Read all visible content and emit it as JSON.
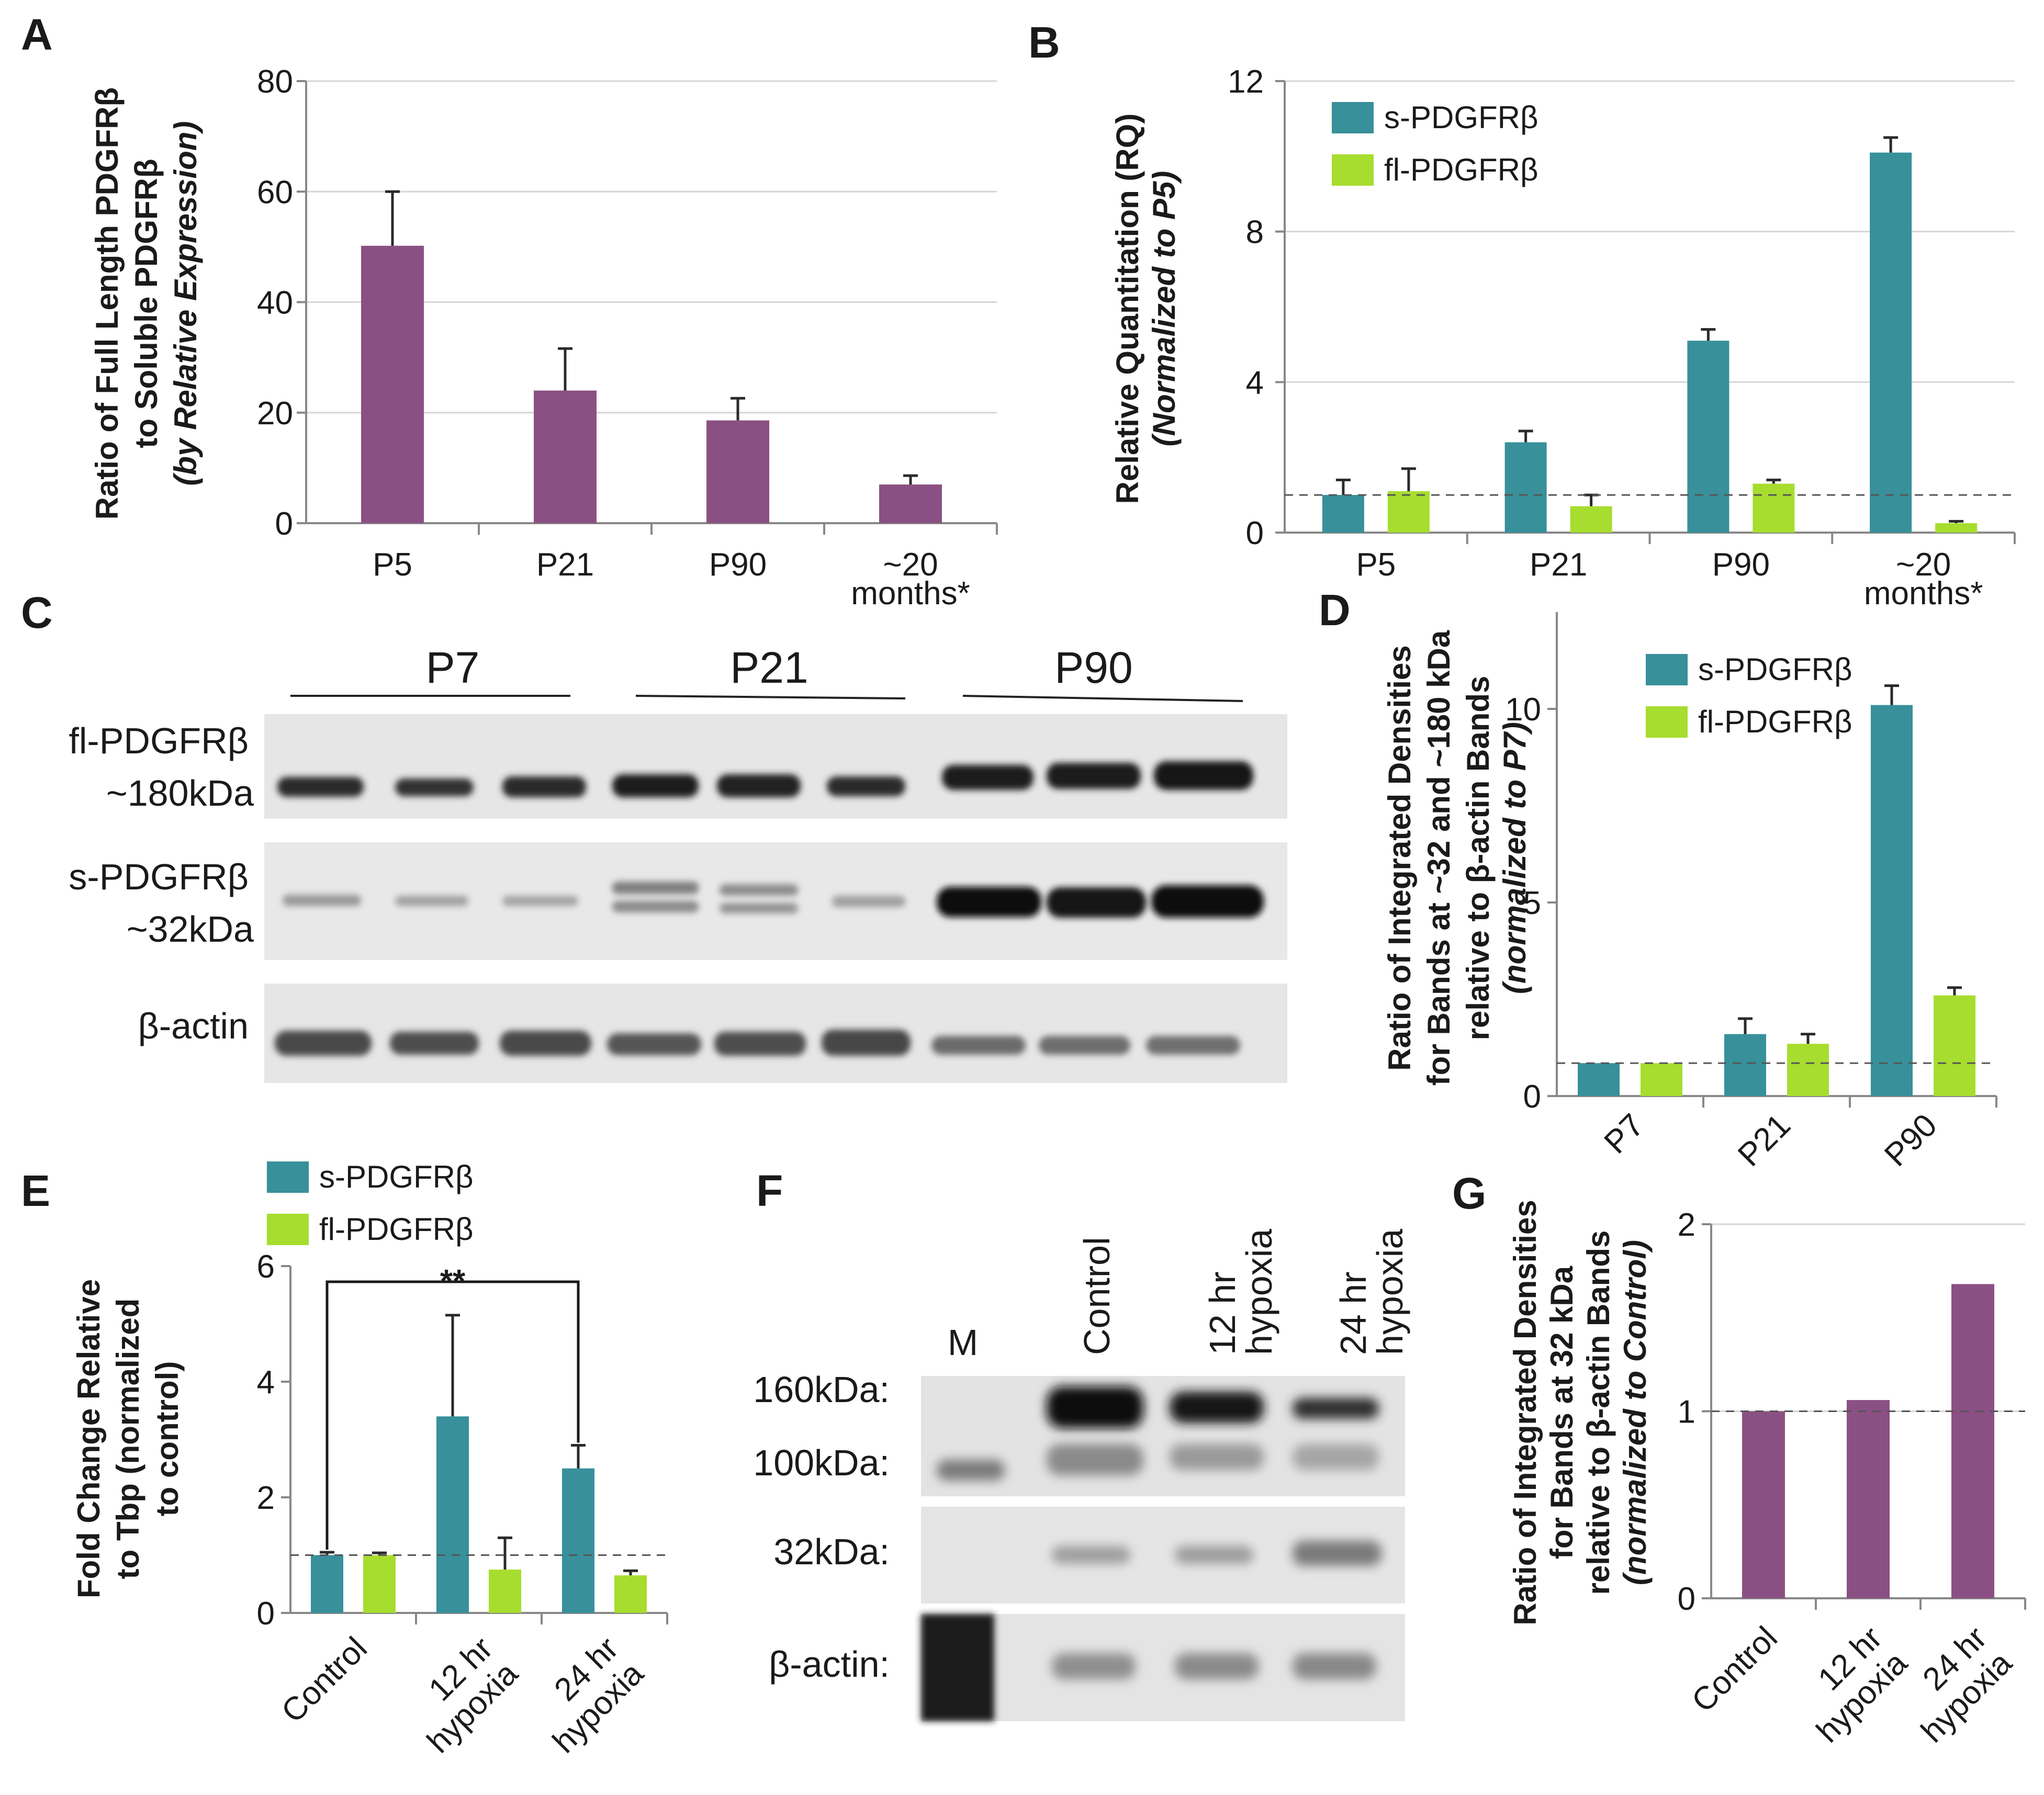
{
  "colors": {
    "purple": "#8b5083",
    "teal": "#37909a",
    "green": "#a7dd2e",
    "blot_bg": "#e5e5e5"
  },
  "panel_labels": {
    "a": "A",
    "b": "B",
    "c": "C",
    "d": "D",
    "e": "E",
    "f": "F",
    "g": "G"
  },
  "blot_c": {
    "headers": [
      "P7",
      "P21",
      "P90"
    ],
    "row1_label": "fl-PDGFRβ",
    "row1_size": "~180kDa",
    "row2_label": "s-PDGFRβ",
    "row2_size": "~32kDa",
    "row3_label": "β-actin"
  },
  "blot_f": {
    "marker": "M",
    "lanes": [
      [
        "Control"
      ],
      [
        "12 hr",
        "hypoxia"
      ],
      [
        "24 hr",
        "hypoxia"
      ]
    ],
    "sizes": [
      "160kDa:",
      "100kDa:",
      "32kDa:",
      "β-actin:"
    ]
  },
  "chart_data": [
    {
      "id": "A",
      "type": "bar",
      "title": "",
      "ylabel_lines": [
        "Ratio of Full Length PDGFRβ",
        "to Soluble PDGFRβ",
        "(by Relative Expression)"
      ],
      "categories": [
        [
          "P5"
        ],
        [
          "P21"
        ],
        [
          "P90"
        ],
        [
          "~20",
          "months*"
        ]
      ],
      "series": [
        {
          "name": "ratio",
          "color": "#8b5083",
          "values": [
            50.2,
            24.0,
            18.6,
            7.0
          ],
          "errors": [
            9.8,
            7.6,
            4.0,
            1.6
          ]
        }
      ],
      "ylim": [
        0,
        80
      ],
      "yticks": [
        0,
        20,
        40,
        60,
        80
      ],
      "grid": true
    },
    {
      "id": "B",
      "type": "bar",
      "ylabel_lines": [
        "Relative Quantitation (RQ)",
        "(Normalized to P5)"
      ],
      "categories": [
        [
          "P5"
        ],
        [
          "P21"
        ],
        [
          "P90"
        ],
        [
          "~20",
          "months*"
        ]
      ],
      "series": [
        {
          "name": "s-PDGFRβ",
          "color": "#37909a",
          "values": [
            1.0,
            2.4,
            5.1,
            10.1
          ],
          "errors": [
            0.4,
            0.3,
            0.3,
            0.4
          ]
        },
        {
          "name": "fl-PDGFRβ",
          "color": "#a7dd2e",
          "values": [
            1.1,
            0.7,
            1.3,
            0.25
          ],
          "errors": [
            0.6,
            0.3,
            0.1,
            0.05
          ]
        }
      ],
      "ylim": [
        0,
        12
      ],
      "yticks": [
        0,
        4,
        8,
        12
      ],
      "grid": true,
      "reference_line": 1.0,
      "legend": "top-left"
    },
    {
      "id": "D",
      "type": "bar",
      "ylabel_lines": [
        "Ratio of Integrated Densities",
        "for Bands at ~32 and ~180 kDa",
        "relative to β-actin Bands",
        "(normalized to P7)"
      ],
      "categories": [
        [
          "P7"
        ],
        [
          "P21"
        ],
        [
          "P90"
        ]
      ],
      "series": [
        {
          "name": "s-PDGFRβ",
          "color": "#37909a",
          "values": [
            0.85,
            1.6,
            10.1
          ],
          "errors": [
            0,
            0.4,
            0.5
          ]
        },
        {
          "name": "fl-PDGFRβ",
          "color": "#a7dd2e",
          "values": [
            0.85,
            1.35,
            2.6
          ],
          "errors": [
            0,
            0.25,
            0.2
          ]
        }
      ],
      "ylim": [
        0,
        12.5
      ],
      "yticks": [
        0,
        5,
        10
      ],
      "grid": false,
      "reference_line": 0.85,
      "legend": "top-left"
    },
    {
      "id": "E",
      "type": "bar",
      "ylabel_lines": [
        "Fold Change Relative",
        "to Tbp (normalized",
        "to control)"
      ],
      "categories": [
        [
          "Control"
        ],
        [
          "12 hr",
          "hypoxia"
        ],
        [
          "24 hr",
          "hypoxia"
        ]
      ],
      "series": [
        {
          "name": "s-PDGFRβ",
          "color": "#37909a",
          "values": [
            1.0,
            3.4,
            2.5
          ],
          "errors": [
            0.05,
            1.75,
            0.4
          ]
        },
        {
          "name": "fl-PDGFRβ",
          "color": "#a7dd2e",
          "values": [
            1.0,
            0.75,
            0.65
          ],
          "errors": [
            0.04,
            0.55,
            0.08
          ]
        }
      ],
      "ylim": [
        0,
        6
      ],
      "yticks": [
        0,
        2,
        4,
        6
      ],
      "grid": false,
      "reference_line": 1.0,
      "significance": "**",
      "legend": "top"
    },
    {
      "id": "G",
      "type": "bar",
      "ylabel_lines": [
        "Ratio of Integrated Densities",
        "for Bands at 32 kDa",
        "relative to β-actin Bands",
        "(normalized to Control)"
      ],
      "categories": [
        [
          "Control"
        ],
        [
          "12 hr",
          "hypoxia"
        ],
        [
          "24 hr",
          "hypoxia"
        ]
      ],
      "series": [
        {
          "name": "ratio",
          "color": "#8b5083",
          "values": [
            1.0,
            1.06,
            1.68
          ],
          "errors": [
            0,
            0,
            0
          ]
        }
      ],
      "ylim": [
        0,
        2
      ],
      "yticks": [
        0,
        1,
        2
      ],
      "grid": true,
      "reference_line": 1.0
    }
  ]
}
